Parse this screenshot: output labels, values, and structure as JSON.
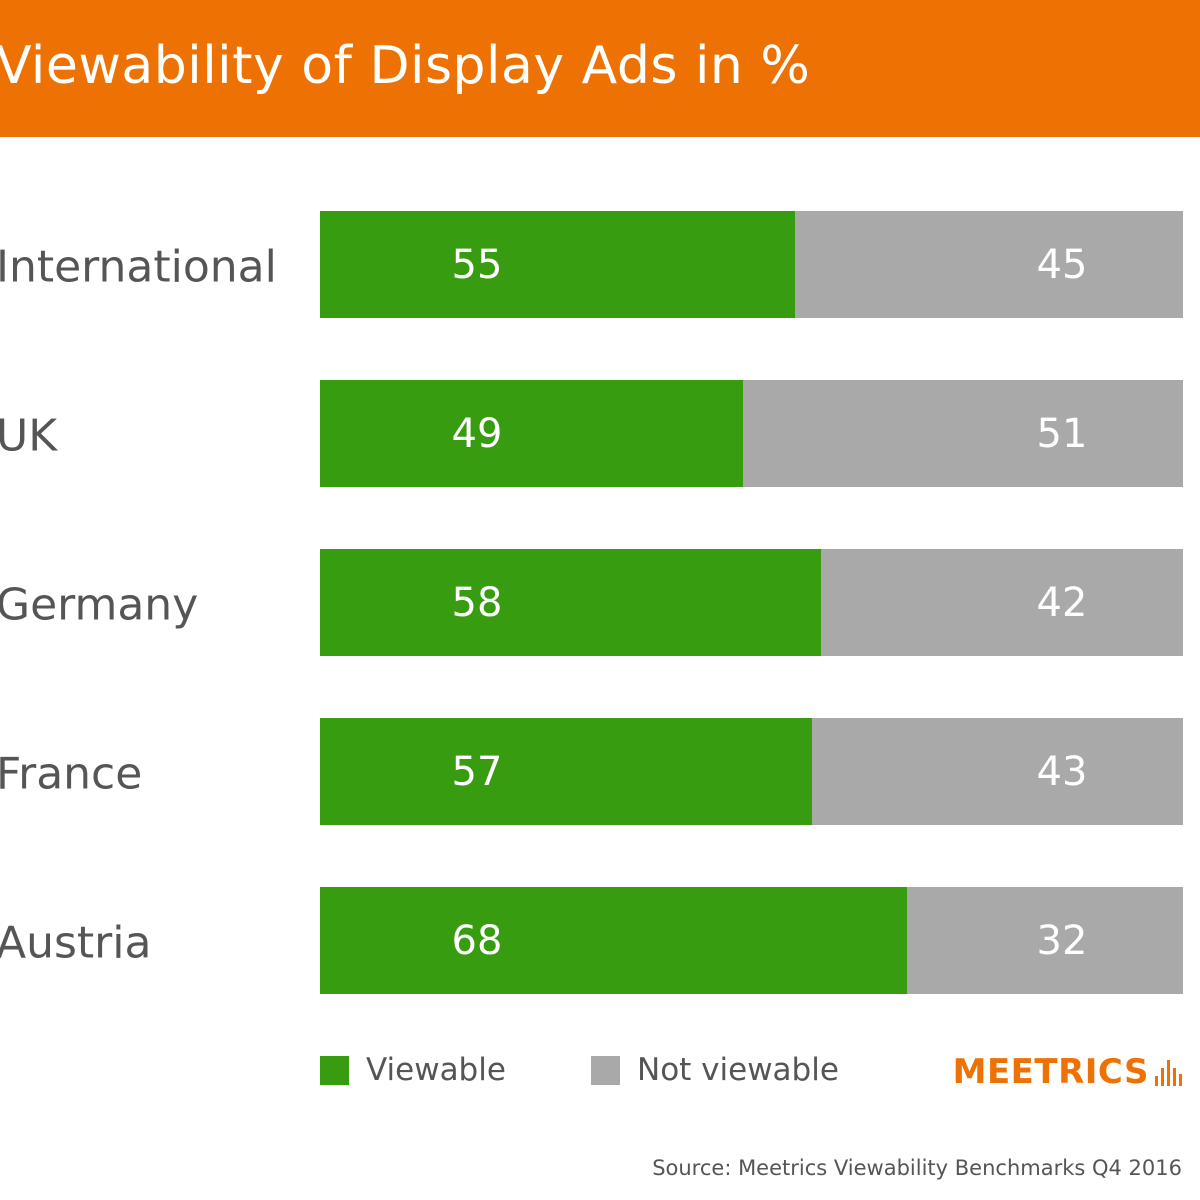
{
  "chart_data": {
    "type": "bar",
    "orientation": "horizontal",
    "stacked": true,
    "title": "Viewability of Display Ads in %",
    "categories": [
      "International",
      "UK",
      "Germany",
      "France",
      "Austria"
    ],
    "series": [
      {
        "name": "Viewable",
        "color": "#379c10",
        "values": [
          55,
          49,
          58,
          57,
          68
        ]
      },
      {
        "name": "Not viewable",
        "color": "#a9a9a9",
        "values": [
          45,
          51,
          42,
          43,
          32
        ]
      }
    ],
    "xlim": [
      0,
      100
    ],
    "grid": false,
    "legend_position": "bottom"
  },
  "brand": {
    "logo_text": "Meetrics",
    "accent_color": "#ee7203"
  },
  "source": "Source: Meetrics Viewability Benchmarks Q4 2016"
}
